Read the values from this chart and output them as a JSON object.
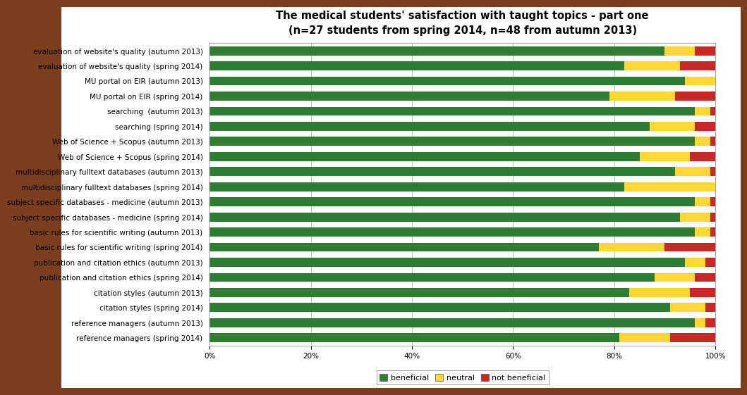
{
  "title": "The medical students' satisfaction with taught topics - part one\n(n=27 students from spring 2014, n=48 from autumn 2013)",
  "categories": [
    "evaluation of website's quality (autumn 2013)",
    "evaluation of website's quality (spring 2014)",
    "MU portal on EIR (autumn 2013)",
    "MU portal on EIR (spring 2014)",
    "searching  (autumn 2013)",
    "searching (spring 2014)",
    "Web of Science + Scopus (autumn 2013)",
    "Web of Science + Scopus (spring 2014)",
    "multidisciplinary fulltext databases (autumn 2013)",
    "multidisciplinary fulltext databases (spring 2014)",
    "subject specific databases - medicine (autumn 2013)",
    "subject specific databases - medicine (spring 2014)",
    "basic rules for scientific writing (autumn 2013)",
    "basic rules for scientific writing (spring 2014)",
    "publication and citation ethics (autumn 2013)",
    "publication and citation ethics (spring 2014)",
    "citation styles (autumn 2013)",
    "citation styles (spring 2014)",
    "reference managers (autumn 2013)",
    "reference managers (spring 2014)"
  ],
  "beneficial": [
    90,
    82,
    94,
    79,
    96,
    87,
    96,
    85,
    92,
    82,
    96,
    93,
    96,
    77,
    94,
    88,
    83,
    91,
    96,
    81
  ],
  "neutral": [
    6,
    11,
    6,
    13,
    3,
    9,
    3,
    10,
    7,
    18,
    3,
    6,
    3,
    13,
    4,
    8,
    12,
    7,
    2,
    10
  ],
  "not_beneficial": [
    4,
    7,
    0,
    8,
    1,
    4,
    1,
    5,
    1,
    0,
    1,
    1,
    1,
    10,
    2,
    4,
    5,
    2,
    2,
    9
  ],
  "colors": {
    "beneficial": "#2e7d32",
    "neutral": "#fdd835",
    "not_beneficial": "#c62828"
  },
  "legend_labels": [
    "beneficial",
    "neutral",
    "not beneficial"
  ],
  "background_outer": "#7b3f1e",
  "background_white": "#ffffff",
  "background_panel": "#ffffff",
  "panel_border": "#aaaaaa",
  "fontsize_title": 10.5,
  "fontsize_ticks": 7.5,
  "fontsize_legend": 8
}
